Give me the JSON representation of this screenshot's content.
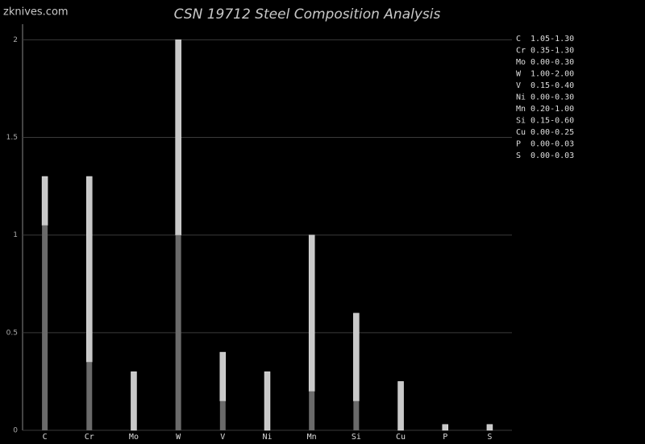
{
  "watermark": "zknives.com",
  "chart_data": {
    "type": "range-bar",
    "title": "CSN 19712 Steel Composition Analysis",
    "categories": [
      "C",
      "Cr",
      "Mo",
      "W",
      "V",
      "Ni",
      "Mn",
      "Si",
      "Cu",
      "P",
      "S"
    ],
    "low": [
      1.05,
      0.35,
      0,
      1,
      0.15,
      0,
      0.2,
      0.15,
      0,
      0,
      0
    ],
    "high": [
      1.3,
      1.3,
      0.3,
      2,
      0.4,
      0.3,
      1,
      0.6,
      0.25,
      0.03,
      0.03
    ],
    "range_labels": [
      "1.05-1.30",
      "0.35-1.30",
      "0.00-0.30",
      "1.00-2.00",
      "0.15-0.40",
      "0.00-0.30",
      "0.20-1.00",
      "0.15-0.60",
      "0.00-0.25",
      "0.00-0.03",
      "0.00-0.03"
    ],
    "low_color": "#6a6a6a",
    "high_color": "#c9c9c9",
    "ylim": [
      0,
      2.08
    ],
    "yticks": [
      0,
      0.5,
      1,
      1.5,
      2
    ],
    "grid": true,
    "legend": "right"
  }
}
